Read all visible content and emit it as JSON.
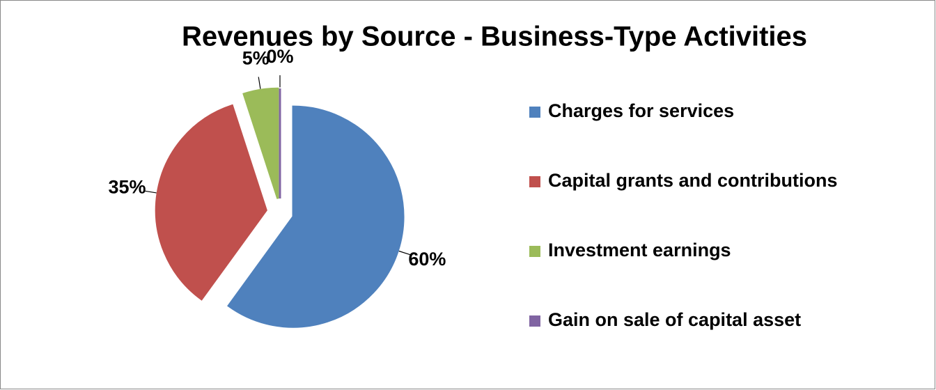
{
  "chart_data": {
    "type": "pie",
    "title": "Revenues by Source - Business-Type Activities",
    "categories": [
      "Charges for services",
      "Capital grants and contributions",
      "Investment earnings",
      "Gain on sale of capital asset"
    ],
    "values": [
      60,
      35,
      5,
      0
    ],
    "value_labels": [
      "60%",
      "35%",
      "5%",
      "0%"
    ],
    "colors": [
      "#4f81bd",
      "#c0504d",
      "#9bbb59",
      "#8064a2"
    ],
    "legend": "right"
  }
}
